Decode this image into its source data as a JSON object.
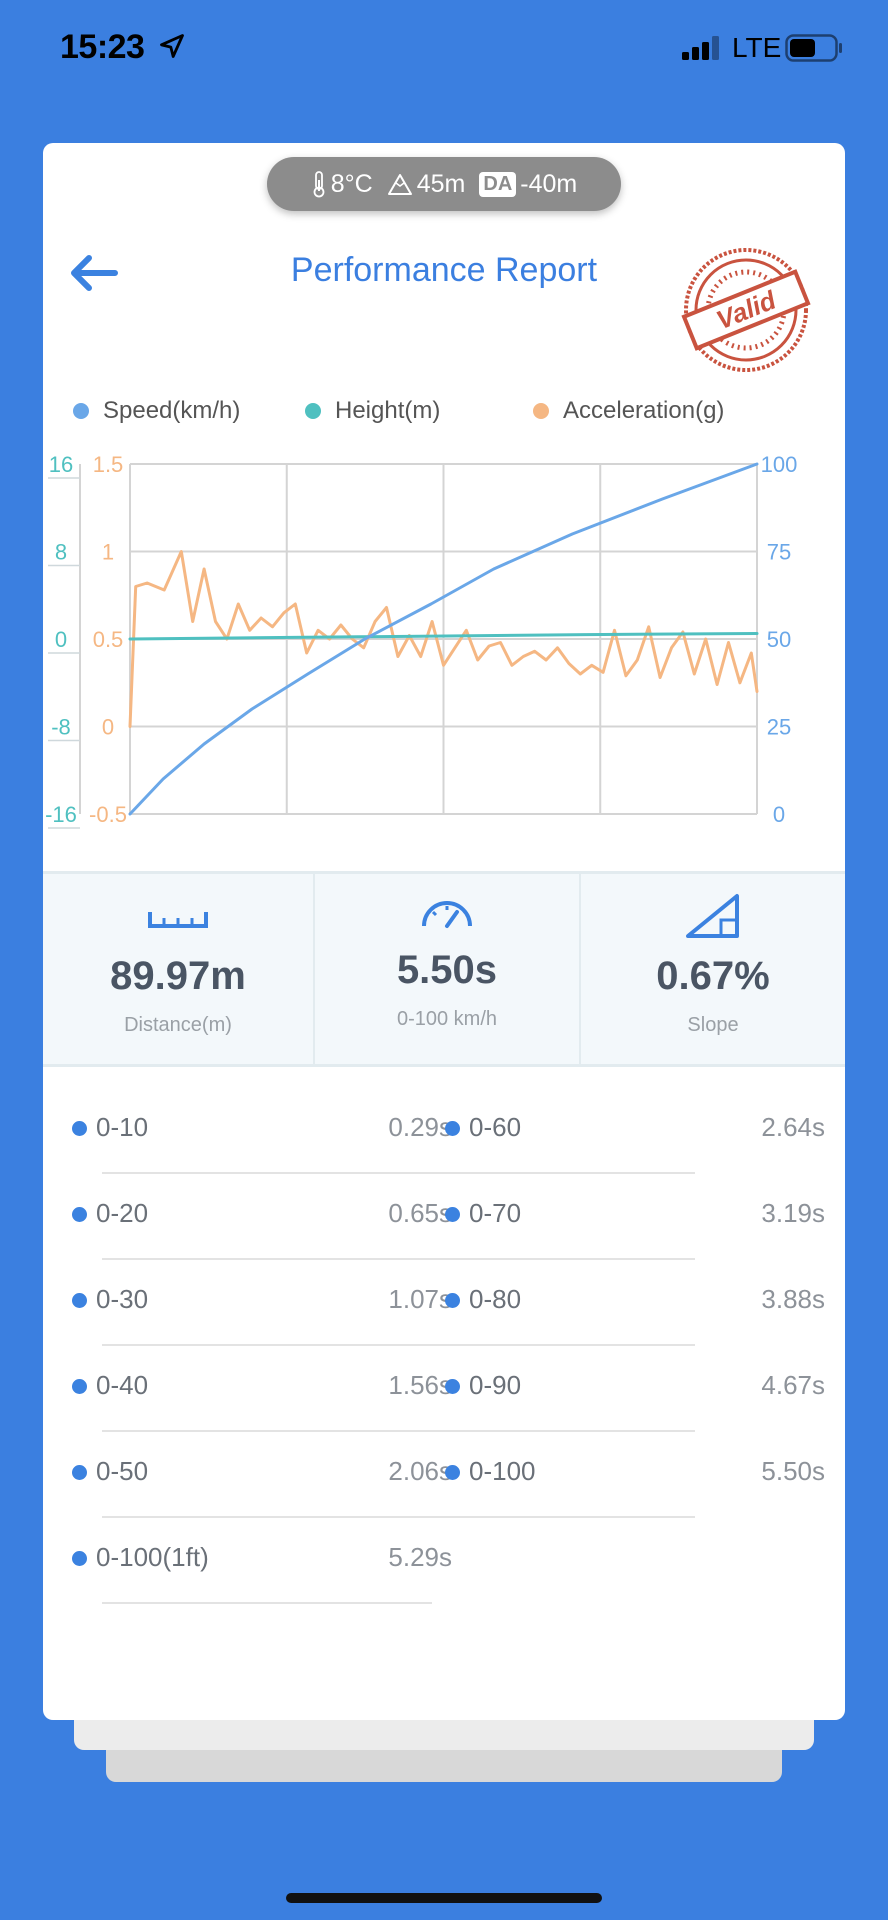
{
  "status_bar": {
    "time": "15:23",
    "network": "LTE"
  },
  "conditions": {
    "temperature": "8°C",
    "altitude": "45m",
    "da_badge": "DA",
    "density_altitude": "-40m"
  },
  "header": {
    "title": "Performance Report",
    "stamp_text": "Valid"
  },
  "legend": [
    {
      "label": "Speed(km/h)",
      "color": "#6aa7e8"
    },
    {
      "label": "Height(m)",
      "color": "#4fc0c0"
    },
    {
      "label": "Acceleration(g)",
      "color": "#f5b783"
    }
  ],
  "chart_data": {
    "type": "line",
    "x_range": [
      0,
      5.5
    ],
    "axes": {
      "height_ticks": [
        "16",
        "8",
        "0",
        "-8",
        "-16"
      ],
      "accel_ticks": [
        "1.5",
        "1",
        "0.5",
        "0",
        "-0.5"
      ],
      "speed_ticks": [
        "100",
        "75",
        "50",
        "25",
        "0"
      ],
      "speed_range": [
        0,
        100
      ],
      "accel_range": [
        -0.5,
        1.5
      ],
      "height_range": [
        -16,
        16
      ]
    },
    "grid": true,
    "series": [
      {
        "name": "Speed(km/h)",
        "color": "#6aa7e8",
        "x": [
          0,
          0.29,
          0.65,
          1.07,
          1.56,
          2.06,
          2.64,
          3.19,
          3.88,
          4.67,
          5.5
        ],
        "y": [
          0,
          10,
          20,
          30,
          40,
          50,
          60,
          70,
          80,
          90,
          100
        ]
      },
      {
        "name": "Height(m)",
        "color": "#4fc0c0",
        "x": [
          0,
          1.0,
          2.0,
          3.0,
          4.0,
          5.5
        ],
        "y": [
          0,
          0.1,
          0.2,
          0.3,
          0.4,
          0.5
        ]
      },
      {
        "name": "Acceleration(g)",
        "color": "#f5b783",
        "x": [
          0,
          0.05,
          0.15,
          0.3,
          0.45,
          0.55,
          0.65,
          0.75,
          0.85,
          0.95,
          1.05,
          1.15,
          1.25,
          1.35,
          1.45,
          1.55,
          1.65,
          1.75,
          1.85,
          1.95,
          2.05,
          2.15,
          2.25,
          2.35,
          2.45,
          2.55,
          2.65,
          2.75,
          2.85,
          2.95,
          3.05,
          3.15,
          3.25,
          3.35,
          3.45,
          3.55,
          3.65,
          3.75,
          3.85,
          3.95,
          4.05,
          4.15,
          4.25,
          4.35,
          4.45,
          4.55,
          4.65,
          4.75,
          4.85,
          4.95,
          5.05,
          5.15,
          5.25,
          5.35,
          5.45,
          5.5
        ],
        "y": [
          0,
          0.8,
          0.82,
          0.78,
          1.0,
          0.6,
          0.9,
          0.6,
          0.5,
          0.7,
          0.55,
          0.62,
          0.57,
          0.65,
          0.7,
          0.42,
          0.55,
          0.5,
          0.58,
          0.5,
          0.45,
          0.6,
          0.68,
          0.4,
          0.52,
          0.4,
          0.6,
          0.35,
          0.45,
          0.55,
          0.38,
          0.46,
          0.48,
          0.35,
          0.4,
          0.43,
          0.38,
          0.45,
          0.36,
          0.3,
          0.35,
          0.31,
          0.55,
          0.29,
          0.38,
          0.57,
          0.28,
          0.45,
          0.54,
          0.3,
          0.5,
          0.24,
          0.48,
          0.25,
          0.42,
          0.2
        ]
      }
    ]
  },
  "stats": [
    {
      "value": "89.97m",
      "label": "Distance(m)"
    },
    {
      "value": "5.50s",
      "label": "0-100 km/h"
    },
    {
      "value": "0.67%",
      "label": "Slope"
    }
  ],
  "splits_left": [
    {
      "label": "0-10",
      "value": "0.29s"
    },
    {
      "label": "0-20",
      "value": "0.65s"
    },
    {
      "label": "0-30",
      "value": "1.07s"
    },
    {
      "label": "0-40",
      "value": "1.56s"
    },
    {
      "label": "0-50",
      "value": "2.06s"
    },
    {
      "label": "0-100(1ft)",
      "value": "5.29s"
    }
  ],
  "splits_right": [
    {
      "label": "0-60",
      "value": "2.64s"
    },
    {
      "label": "0-70",
      "value": "3.19s"
    },
    {
      "label": "0-80",
      "value": "3.88s"
    },
    {
      "label": "0-90",
      "value": "4.67s"
    },
    {
      "label": "0-100",
      "value": "5.50s"
    }
  ]
}
